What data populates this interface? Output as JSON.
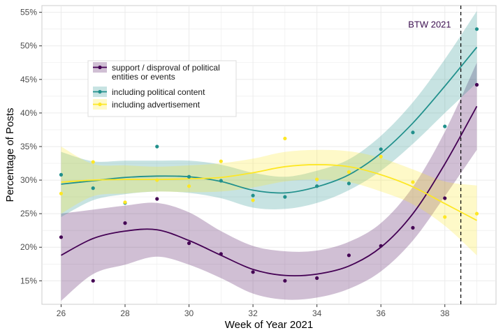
{
  "chart_data": {
    "type": "scatter",
    "xlabel": "Week of Year 2021",
    "ylabel": "Percentage of Posts",
    "xlim": [
      25.4,
      39.6
    ],
    "ylim": [
      11.5,
      56
    ],
    "x_ticks": [
      26,
      28,
      30,
      32,
      34,
      36,
      38
    ],
    "y_ticks": [
      15,
      20,
      25,
      30,
      35,
      40,
      45,
      50,
      55
    ],
    "x_tick_labels": [
      "26",
      "28",
      "30",
      "32",
      "34",
      "36",
      "38"
    ],
    "y_tick_labels": [
      "15%",
      "20%",
      "25%",
      "30%",
      "35%",
      "40%",
      "45%",
      "50%",
      "55%"
    ],
    "grid": true,
    "legend_position": "top-left",
    "vline": {
      "x": 38.5,
      "label": "BTW 2021",
      "style": "dashed"
    },
    "series": [
      {
        "name": "support / disproval of political entities or events",
        "color": "#440154",
        "points": [
          [
            26,
            21.5
          ],
          [
            27,
            15.0
          ],
          [
            28,
            23.6
          ],
          [
            29,
            27.2
          ],
          [
            30,
            20.6
          ],
          [
            31,
            19.0
          ],
          [
            32,
            16.3
          ],
          [
            33,
            15.0
          ],
          [
            34,
            15.4
          ],
          [
            35,
            18.8
          ],
          [
            36,
            20.2
          ],
          [
            37,
            22.9
          ],
          [
            38,
            27.3
          ],
          [
            39,
            44.2
          ]
        ],
        "fit": [
          [
            26,
            18.8
          ],
          [
            27,
            21.3
          ],
          [
            28,
            22.4
          ],
          [
            29,
            22.6
          ],
          [
            30,
            21.0
          ],
          [
            31,
            18.8
          ],
          [
            32,
            16.7
          ],
          [
            33,
            15.8
          ],
          [
            34,
            16.0
          ],
          [
            35,
            17.2
          ],
          [
            36,
            20.0
          ],
          [
            37,
            25.0
          ],
          [
            38,
            32.4
          ],
          [
            39,
            41.0
          ]
        ],
        "band_lower": [
          [
            26,
            12.0
          ],
          [
            27,
            16.0
          ],
          [
            28,
            17.4
          ],
          [
            29,
            18.6
          ],
          [
            30,
            17.4
          ],
          [
            31,
            15.4
          ],
          [
            32,
            13.1
          ],
          [
            33,
            12.2
          ],
          [
            34,
            12.5
          ],
          [
            35,
            13.8
          ],
          [
            36,
            16.4
          ],
          [
            37,
            21.0
          ],
          [
            38,
            27.6
          ],
          [
            39,
            34.5
          ]
        ],
        "band_upper": [
          [
            26,
            25.0
          ],
          [
            27,
            25.6
          ],
          [
            28,
            26.2
          ],
          [
            29,
            26.6
          ],
          [
            30,
            25.2
          ],
          [
            31,
            22.4
          ],
          [
            32,
            20.2
          ],
          [
            33,
            19.4
          ],
          [
            34,
            19.5
          ],
          [
            35,
            20.8
          ],
          [
            36,
            23.6
          ],
          [
            37,
            29.0
          ],
          [
            38,
            37.2
          ],
          [
            39,
            47.5
          ]
        ]
      },
      {
        "name": "including political content",
        "color": "#21908c",
        "points": [
          [
            26,
            30.8
          ],
          [
            27,
            28.8
          ],
          [
            28,
            26.6
          ],
          [
            29,
            35.0
          ],
          [
            30,
            30.5
          ],
          [
            31,
            29.9
          ],
          [
            32,
            27.7
          ],
          [
            33,
            27.5
          ],
          [
            34,
            29.1
          ],
          [
            35,
            29.5
          ],
          [
            36,
            34.6
          ],
          [
            37,
            37.1
          ],
          [
            38,
            38.0
          ],
          [
            39,
            52.5
          ]
        ],
        "fit": [
          [
            26,
            29.4
          ],
          [
            27,
            29.9
          ],
          [
            28,
            30.4
          ],
          [
            29,
            30.6
          ],
          [
            30,
            30.5
          ],
          [
            31,
            29.8
          ],
          [
            32,
            28.5
          ],
          [
            33,
            28.1
          ],
          [
            34,
            29.0
          ],
          [
            35,
            30.8
          ],
          [
            36,
            34.0
          ],
          [
            37,
            38.5
          ],
          [
            38,
            44.0
          ],
          [
            39,
            49.8
          ]
        ],
        "band_lower": [
          [
            26,
            24.5
          ],
          [
            27,
            27.0
          ],
          [
            28,
            27.9
          ],
          [
            29,
            28.3
          ],
          [
            30,
            28.1
          ],
          [
            31,
            27.3
          ],
          [
            32,
            25.9
          ],
          [
            33,
            25.7
          ],
          [
            34,
            26.6
          ],
          [
            35,
            28.5
          ],
          [
            36,
            31.4
          ],
          [
            37,
            35.4
          ],
          [
            38,
            40.0
          ],
          [
            39,
            44.5
          ]
        ],
        "band_upper": [
          [
            26,
            34.2
          ],
          [
            27,
            32.8
          ],
          [
            28,
            32.9
          ],
          [
            29,
            32.9
          ],
          [
            30,
            32.9
          ],
          [
            31,
            32.3
          ],
          [
            32,
            31.1
          ],
          [
            33,
            30.5
          ],
          [
            34,
            31.4
          ],
          [
            35,
            33.1
          ],
          [
            36,
            36.6
          ],
          [
            37,
            41.6
          ],
          [
            38,
            48.0
          ],
          [
            39,
            55.2
          ]
        ]
      },
      {
        "name": "including advertisement",
        "color": "#fde725",
        "points": [
          [
            26,
            28.0
          ],
          [
            27,
            32.7
          ],
          [
            28,
            26.7
          ],
          [
            29,
            30.0
          ],
          [
            30,
            29.1
          ],
          [
            31,
            32.8
          ],
          [
            32,
            27.0
          ],
          [
            33,
            36.2
          ],
          [
            34,
            30.1
          ],
          [
            35,
            31.2
          ],
          [
            36,
            33.5
          ],
          [
            37,
            29.7
          ],
          [
            38,
            24.5
          ],
          [
            39,
            25.0
          ]
        ],
        "fit": [
          [
            26,
            29.7
          ],
          [
            27,
            30.0
          ],
          [
            28,
            30.1
          ],
          [
            29,
            30.1
          ],
          [
            30,
            30.2
          ],
          [
            31,
            30.4
          ],
          [
            32,
            31.1
          ],
          [
            33,
            32.0
          ],
          [
            34,
            32.3
          ],
          [
            35,
            32.0
          ],
          [
            36,
            30.8
          ],
          [
            37,
            29.0
          ],
          [
            38,
            26.5
          ],
          [
            39,
            24.0
          ]
        ],
        "band_lower": [
          [
            26,
            25.0
          ],
          [
            27,
            27.6
          ],
          [
            28,
            28.0
          ],
          [
            29,
            28.3
          ],
          [
            30,
            28.2
          ],
          [
            31,
            28.3
          ],
          [
            32,
            28.9
          ],
          [
            33,
            29.8
          ],
          [
            34,
            30.1
          ],
          [
            35,
            29.7
          ],
          [
            36,
            28.3
          ],
          [
            37,
            26.4
          ],
          [
            38,
            23.2
          ],
          [
            39,
            18.8
          ]
        ],
        "band_upper": [
          [
            26,
            35.0
          ],
          [
            27,
            32.4
          ],
          [
            28,
            32.2
          ],
          [
            29,
            32.0
          ],
          [
            30,
            32.2
          ],
          [
            31,
            32.5
          ],
          [
            32,
            33.2
          ],
          [
            33,
            34.2
          ],
          [
            34,
            34.5
          ],
          [
            35,
            34.3
          ],
          [
            36,
            33.3
          ],
          [
            37,
            31.6
          ],
          [
            38,
            29.8
          ],
          [
            39,
            29.2
          ]
        ]
      }
    ]
  }
}
